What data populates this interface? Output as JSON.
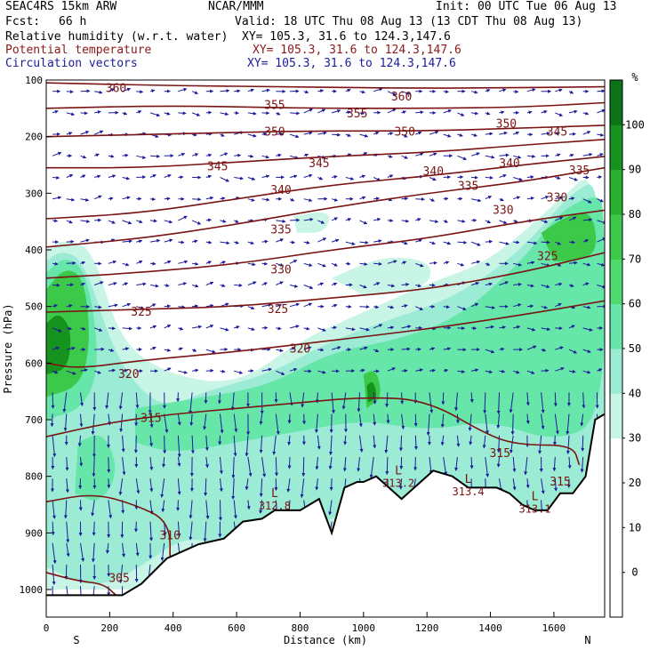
{
  "header": {
    "model": "SEAC4RS 15km ARW",
    "center": "NCAR/MMM",
    "init": "Init: 00 UTC Tue 06 Aug 13",
    "fcst_label": "Fcst:",
    "fcst_value": "66 h",
    "valid": "Valid: 18 UTC Thu 08 Aug 13 (13 CDT Thu 08 Aug 13)",
    "fields": [
      {
        "name": "Relative humidity (w.r.t. water)",
        "xy": "XY= 105.3, 31.6 to 124.3,147.6",
        "color": "#000000"
      },
      {
        "name": "Potential temperature",
        "xy": "XY= 105.3, 31.6 to 124.3,147.6",
        "color": "#8b1a1a"
      },
      {
        "name": "Circulation vectors",
        "xy": "XY= 105.3, 31.6 to 124.3,147.6",
        "color": "#1b1b9a"
      }
    ]
  },
  "chart_data": {
    "type": "heatmap",
    "title": "",
    "xlabel": "Distance (km)",
    "ylabel": "Pressure (hPa)",
    "xlim": [
      0,
      1760
    ],
    "ylim": [
      1050,
      100
    ],
    "x_ticks": [
      0,
      200,
      400,
      600,
      800,
      1000,
      1200,
      1400,
      1600
    ],
    "y_ticks": [
      100,
      200,
      300,
      400,
      500,
      600,
      700,
      800,
      900,
      1000
    ],
    "end_labels": {
      "left": "S",
      "right": "N"
    },
    "colorbar": {
      "unit": "%",
      "ticks": [
        0,
        10,
        20,
        30,
        40,
        50,
        60,
        70,
        80,
        90,
        100
      ],
      "bins": [
        {
          "lo": -10,
          "hi": 0,
          "color": "#ffffff"
        },
        {
          "lo": 0,
          "hi": 10,
          "color": "#ffffff"
        },
        {
          "lo": 10,
          "hi": 20,
          "color": "#ffffff"
        },
        {
          "lo": 20,
          "hi": 30,
          "color": "#ffffff"
        },
        {
          "lo": 30,
          "hi": 40,
          "color": "#c8f5e6"
        },
        {
          "lo": 40,
          "hi": 50,
          "color": "#9cebd4"
        },
        {
          "lo": 50,
          "hi": 60,
          "color": "#66e6a8"
        },
        {
          "lo": 60,
          "hi": 70,
          "color": "#4fda6e"
        },
        {
          "lo": 70,
          "hi": 80,
          "color": "#3cc94a"
        },
        {
          "lo": 80,
          "hi": 90,
          "color": "#28b030"
        },
        {
          "lo": 90,
          "hi": 100,
          "color": "#16921f"
        },
        {
          "lo": 100,
          "hi": 110,
          "color": "#0b7416"
        }
      ]
    },
    "humidity_regions": [
      {
        "level": 35,
        "points": [
          [
            0,
            400
          ],
          [
            60,
            380
          ],
          [
            150,
            400
          ],
          [
            230,
            560
          ],
          [
            380,
            620
          ],
          [
            600,
            640
          ],
          [
            800,
            560
          ],
          [
            1000,
            510
          ],
          [
            1200,
            460
          ],
          [
            1400,
            420
          ],
          [
            1600,
            320
          ],
          [
            1760,
            240
          ],
          [
            1760,
            1000
          ],
          [
            0,
            1000
          ]
        ]
      },
      {
        "level": 45,
        "points": [
          [
            0,
            420
          ],
          [
            50,
            400
          ],
          [
            120,
            420
          ],
          [
            200,
            560
          ],
          [
            280,
            640
          ],
          [
            380,
            680
          ],
          [
            500,
            650
          ],
          [
            700,
            620
          ],
          [
            900,
            560
          ],
          [
            1100,
            520
          ],
          [
            1300,
            480
          ],
          [
            1500,
            400
          ],
          [
            1650,
            300
          ],
          [
            1760,
            270
          ],
          [
            1760,
            940
          ],
          [
            1640,
            920
          ],
          [
            1450,
            880
          ],
          [
            1250,
            860
          ],
          [
            1000,
            850
          ],
          [
            800,
            900
          ],
          [
            600,
            940
          ],
          [
            450,
            900
          ],
          [
            300,
            960
          ],
          [
            150,
            1000
          ],
          [
            0,
            960
          ]
        ]
      },
      {
        "level": 55,
        "points": [
          [
            0,
            440
          ],
          [
            60,
            410
          ],
          [
            130,
            440
          ],
          [
            170,
            600
          ],
          [
            120,
            680
          ],
          [
            0,
            700
          ]
        ]
      },
      {
        "level": 55,
        "points": [
          [
            280,
            680
          ],
          [
            500,
            660
          ],
          [
            700,
            640
          ],
          [
            900,
            580
          ],
          [
            1100,
            560
          ],
          [
            1300,
            520
          ],
          [
            1500,
            420
          ],
          [
            1620,
            330
          ],
          [
            1740,
            300
          ],
          [
            1760,
            330
          ],
          [
            1760,
            700
          ],
          [
            1600,
            740
          ],
          [
            1400,
            700
          ],
          [
            1200,
            720
          ],
          [
            1000,
            700
          ],
          [
            800,
            720
          ],
          [
            600,
            740
          ],
          [
            400,
            760
          ],
          [
            280,
            740
          ]
        ]
      },
      {
        "level": 55,
        "points": [
          [
            100,
            740
          ],
          [
            180,
            720
          ],
          [
            230,
            790
          ],
          [
            170,
            850
          ],
          [
            90,
            830
          ]
        ]
      },
      {
        "level": 75,
        "points": [
          [
            0,
            470
          ],
          [
            60,
            430
          ],
          [
            120,
            450
          ],
          [
            140,
            560
          ],
          [
            110,
            640
          ],
          [
            0,
            660
          ]
        ]
      },
      {
        "level": 75,
        "points": [
          [
            1560,
            370
          ],
          [
            1640,
            340
          ],
          [
            1720,
            330
          ],
          [
            1740,
            400
          ],
          [
            1680,
            420
          ],
          [
            1600,
            420
          ]
        ]
      },
      {
        "level": 75,
        "points": [
          [
            1000,
            620
          ],
          [
            1040,
            610
          ],
          [
            1060,
            660
          ],
          [
            1010,
            680
          ]
        ]
      },
      {
        "level": 95,
        "points": [
          [
            0,
            530
          ],
          [
            40,
            510
          ],
          [
            80,
            540
          ],
          [
            70,
            610
          ],
          [
            0,
            620
          ]
        ]
      },
      {
        "level": 95,
        "points": [
          [
            1010,
            640
          ],
          [
            1030,
            630
          ],
          [
            1045,
            660
          ],
          [
            1015,
            670
          ]
        ]
      },
      {
        "level": 35,
        "points": [
          [
            900,
            450
          ],
          [
            1060,
            410
          ],
          [
            1220,
            420
          ],
          [
            1200,
            470
          ],
          [
            1000,
            480
          ]
        ]
      },
      {
        "level": 35,
        "points": [
          [
            780,
            340
          ],
          [
            900,
            330
          ],
          [
            880,
            370
          ],
          [
            790,
            370
          ]
        ]
      }
    ],
    "theta_contours": [
      {
        "value": 360,
        "points": [
          [
            0,
            105
          ],
          [
            400,
            110
          ],
          [
            800,
            112
          ],
          [
            1200,
            115
          ],
          [
            1760,
            112
          ]
        ]
      },
      {
        "value": 355,
        "points": [
          [
            0,
            150
          ],
          [
            400,
            145
          ],
          [
            800,
            150
          ],
          [
            1200,
            150
          ],
          [
            1500,
            148
          ],
          [
            1760,
            140
          ]
        ]
      },
      {
        "value": 350,
        "points": [
          [
            0,
            200
          ],
          [
            400,
            195
          ],
          [
            800,
            190
          ],
          [
            1200,
            190
          ],
          [
            1500,
            185
          ],
          [
            1760,
            180
          ]
        ]
      },
      {
        "value": 345,
        "points": [
          [
            0,
            255
          ],
          [
            300,
            255
          ],
          [
            600,
            245
          ],
          [
            900,
            235
          ],
          [
            1200,
            228
          ],
          [
            1500,
            215
          ],
          [
            1760,
            205
          ]
        ]
      },
      {
        "value": 340,
        "points": [
          [
            0,
            345
          ],
          [
            300,
            335
          ],
          [
            600,
            310
          ],
          [
            900,
            285
          ],
          [
            1200,
            270
          ],
          [
            1500,
            250
          ],
          [
            1760,
            235
          ]
        ]
      },
      {
        "value": 335,
        "points": [
          [
            0,
            395
          ],
          [
            300,
            380
          ],
          [
            600,
            355
          ],
          [
            900,
            325
          ],
          [
            1200,
            300
          ],
          [
            1500,
            280
          ],
          [
            1760,
            255
          ]
        ]
      },
      {
        "value": 330,
        "points": [
          [
            0,
            450
          ],
          [
            300,
            440
          ],
          [
            600,
            425
          ],
          [
            900,
            400
          ],
          [
            1200,
            380
          ],
          [
            1500,
            350
          ],
          [
            1760,
            330
          ]
        ]
      },
      {
        "value": 325,
        "points": [
          [
            0,
            510
          ],
          [
            300,
            505
          ],
          [
            600,
            500
          ],
          [
            900,
            485
          ],
          [
            1200,
            470
          ],
          [
            1500,
            440
          ],
          [
            1760,
            405
          ]
        ]
      },
      {
        "value": 320,
        "points": [
          [
            0,
            600
          ],
          [
            100,
            610
          ],
          [
            300,
            595
          ],
          [
            600,
            580
          ],
          [
            900,
            560
          ],
          [
            1200,
            540
          ],
          [
            1500,
            515
          ],
          [
            1760,
            490
          ]
        ]
      },
      {
        "value": 315,
        "points": [
          [
            0,
            730
          ],
          [
            200,
            705
          ],
          [
            400,
            690
          ],
          [
            600,
            680
          ],
          [
            800,
            670
          ],
          [
            1000,
            660
          ],
          [
            1200,
            665
          ],
          [
            1400,
            730
          ],
          [
            1500,
            745
          ],
          [
            1660,
            745
          ],
          [
            1680,
            780
          ]
        ]
      },
      {
        "value": 310,
        "points": [
          [
            0,
            845
          ],
          [
            150,
            830
          ],
          [
            280,
            850
          ],
          [
            390,
            880
          ],
          [
            390,
            960
          ]
        ]
      },
      {
        "value": 305,
        "points": [
          [
            0,
            970
          ],
          [
            100,
            985
          ],
          [
            180,
            990
          ],
          [
            220,
            1010
          ]
        ]
      }
    ],
    "theta_labels": [
      {
        "text": "360",
        "x": 220,
        "y": 115
      },
      {
        "text": "360",
        "x": 1120,
        "y": 130
      },
      {
        "text": "355",
        "x": 720,
        "y": 145
      },
      {
        "text": "355",
        "x": 980,
        "y": 160
      },
      {
        "text": "350",
        "x": 720,
        "y": 192
      },
      {
        "text": "350",
        "x": 1130,
        "y": 192
      },
      {
        "text": "350",
        "x": 1450,
        "y": 178
      },
      {
        "text": "345",
        "x": 1610,
        "y": 192
      },
      {
        "text": "345",
        "x": 540,
        "y": 253
      },
      {
        "text": "345",
        "x": 860,
        "y": 248
      },
      {
        "text": "340",
        "x": 740,
        "y": 295
      },
      {
        "text": "340",
        "x": 1220,
        "y": 262
      },
      {
        "text": "340",
        "x": 1460,
        "y": 248
      },
      {
        "text": "335",
        "x": 1330,
        "y": 288
      },
      {
        "text": "335",
        "x": 1680,
        "y": 260
      },
      {
        "text": "335",
        "x": 740,
        "y": 365
      },
      {
        "text": "330",
        "x": 1440,
        "y": 330
      },
      {
        "text": "330",
        "x": 1610,
        "y": 308
      },
      {
        "text": "330",
        "x": 740,
        "y": 435
      },
      {
        "text": "325",
        "x": 1580,
        "y": 412
      },
      {
        "text": "325",
        "x": 300,
        "y": 510
      },
      {
        "text": "325",
        "x": 730,
        "y": 505
      },
      {
        "text": "320",
        "x": 260,
        "y": 620
      },
      {
        "text": "320",
        "x": 800,
        "y": 575
      },
      {
        "text": "315",
        "x": 330,
        "y": 698
      },
      {
        "text": "315",
        "x": 1430,
        "y": 760
      },
      {
        "text": "315",
        "x": 1620,
        "y": 810
      },
      {
        "text": "310",
        "x": 390,
        "y": 905
      },
      {
        "text": "305",
        "x": 230,
        "y": 980
      }
    ],
    "lows": [
      {
        "x": 720,
        "y": 840,
        "value": "312.8"
      },
      {
        "x": 1110,
        "y": 800,
        "value": "313.2"
      },
      {
        "x": 1330,
        "y": 815,
        "value": "313.4"
      },
      {
        "x": 1540,
        "y": 845,
        "value": "313.1"
      }
    ],
    "terrain": [
      [
        0,
        1010
      ],
      [
        240,
        1010
      ],
      [
        300,
        990
      ],
      [
        380,
        945
      ],
      [
        480,
        920
      ],
      [
        560,
        910
      ],
      [
        620,
        880
      ],
      [
        680,
        875
      ],
      [
        720,
        860
      ],
      [
        800,
        860
      ],
      [
        860,
        840
      ],
      [
        900,
        900
      ],
      [
        940,
        820
      ],
      [
        980,
        810
      ],
      [
        1000,
        810
      ],
      [
        1040,
        800
      ],
      [
        1080,
        820
      ],
      [
        1120,
        840
      ],
      [
        1160,
        820
      ],
      [
        1220,
        790
      ],
      [
        1280,
        800
      ],
      [
        1330,
        820
      ],
      [
        1380,
        820
      ],
      [
        1420,
        820
      ],
      [
        1460,
        830
      ],
      [
        1500,
        850
      ],
      [
        1540,
        860
      ],
      [
        1580,
        860
      ],
      [
        1620,
        830
      ],
      [
        1660,
        830
      ],
      [
        1700,
        800
      ],
      [
        1730,
        700
      ],
      [
        1760,
        690
      ]
    ]
  }
}
